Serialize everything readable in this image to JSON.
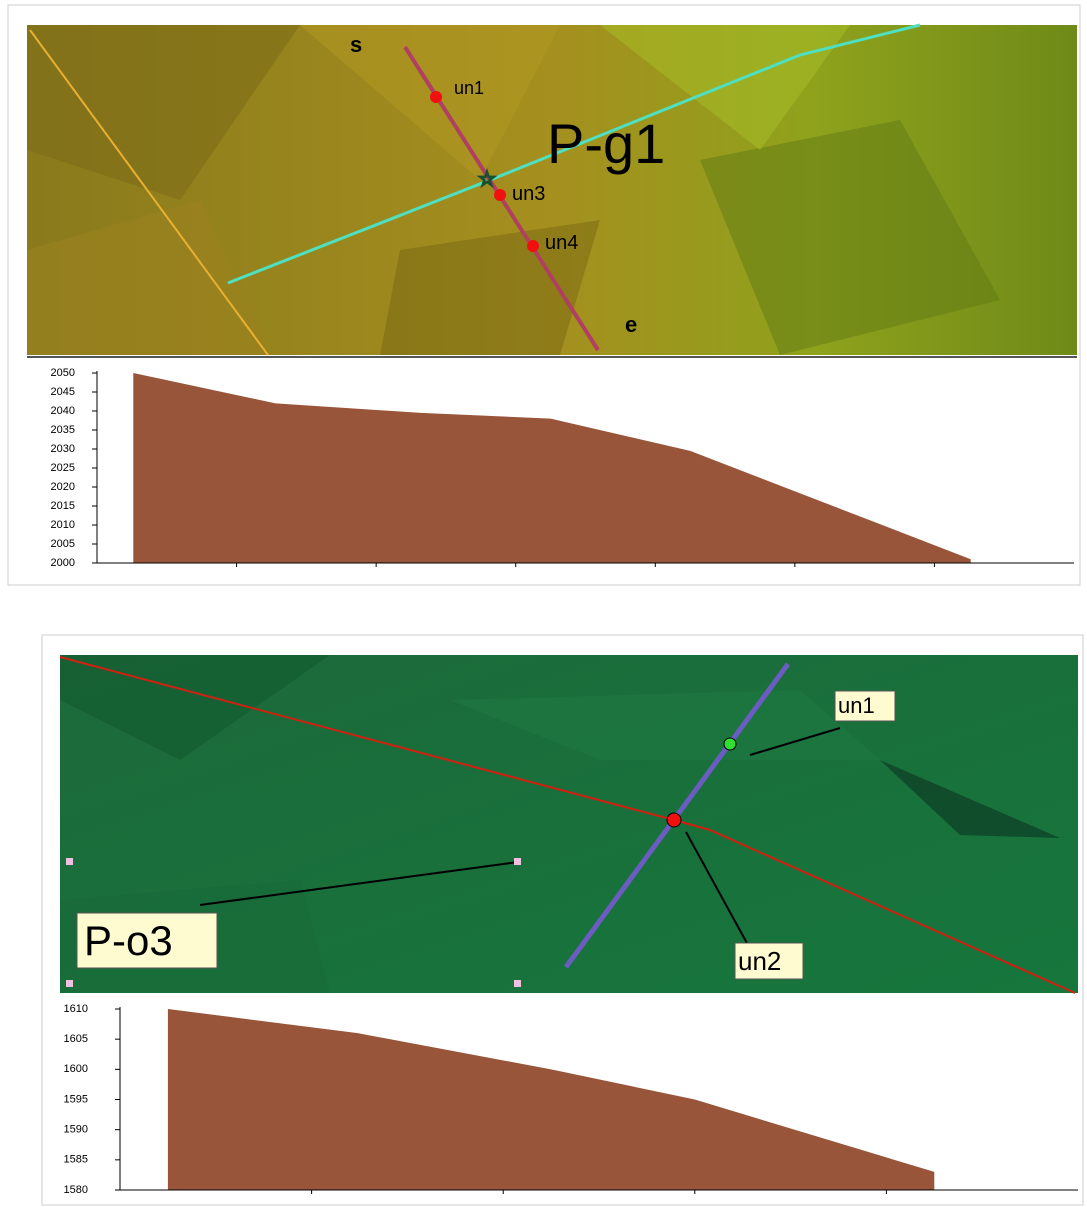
{
  "chart_data": [
    {
      "type": "area",
      "x": [
        0.26,
        1.28,
        2.32,
        3.25,
        4.25,
        6.26
      ],
      "values": [
        2050,
        2042,
        2039.5,
        2038,
        2029.5,
        2001
      ],
      "color": "#98553a",
      "xlim": [
        0,
        7
      ],
      "xticks": [
        1,
        2,
        3,
        4,
        5,
        6
      ],
      "ylim": [
        2000,
        2050
      ],
      "yticks": [
        2000,
        2005,
        2010,
        2015,
        2020,
        2025,
        2030,
        2035,
        2040,
        2045,
        2050
      ]
    },
    {
      "type": "area",
      "x": [
        0.25,
        1.24,
        2.25,
        3.0,
        4.25
      ],
      "values": [
        1610,
        1606,
        1600,
        1595,
        1583
      ],
      "color": "#98553a",
      "xlim": [
        0,
        5
      ],
      "xticks": [
        1,
        2,
        3,
        4
      ],
      "ylim": [
        1580,
        1610
      ],
      "yticks": [
        1580,
        1585,
        1590,
        1595,
        1600,
        1605,
        1610
      ]
    }
  ],
  "maps": [
    {
      "start": "s",
      "end": "e",
      "title": "P-g1",
      "points": [
        "un1",
        "un3",
        "un4"
      ]
    },
    {
      "title": "P-o3",
      "points": [
        "un1",
        "un2"
      ]
    }
  ]
}
